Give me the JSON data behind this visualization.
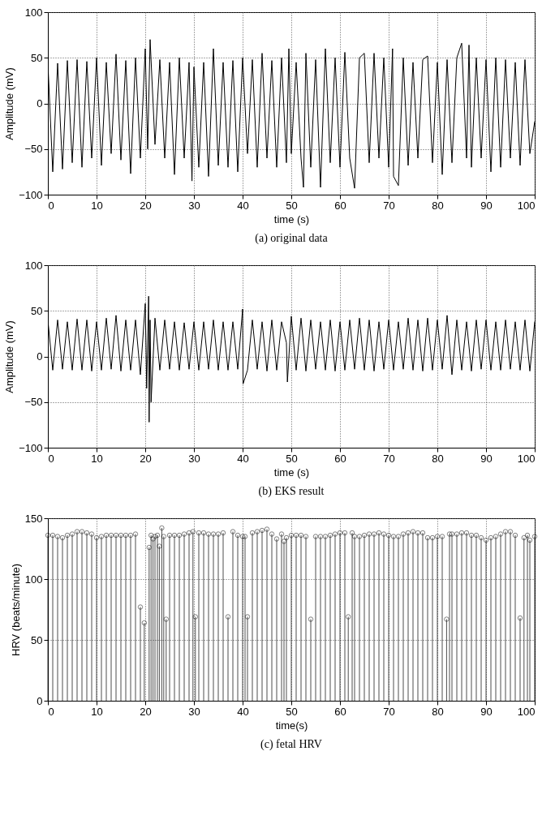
{
  "chart_data": [
    {
      "type": "line",
      "title": "(a) original data",
      "xlabel": "time (s)",
      "ylabel": "Amplitude (mV)",
      "xlim": [
        0,
        100
      ],
      "ylim": [
        -100,
        100
      ],
      "xticks": [
        0,
        10,
        20,
        30,
        40,
        50,
        60,
        70,
        80,
        90,
        100
      ],
      "yticks": [
        -100,
        -50,
        0,
        50,
        100
      ],
      "grid": true,
      "line_style": "solid",
      "series": [
        {
          "color": "#000000",
          "x": [
            0,
            1,
            2,
            3,
            4,
            5,
            6,
            7,
            8,
            9,
            10,
            11,
            12,
            13,
            14,
            15,
            16,
            17,
            18,
            19,
            20,
            20.5,
            21,
            22,
            23,
            24,
            25,
            26,
            27,
            28,
            29,
            29.6,
            30,
            31,
            32,
            33,
            34,
            35,
            36,
            37,
            38,
            39,
            40,
            41,
            42,
            43,
            44,
            45,
            46,
            47,
            48,
            49,
            49.5,
            50,
            51,
            52,
            52.5,
            53,
            54,
            55,
            56,
            57,
            58,
            59,
            60,
            61,
            62,
            63,
            64,
            65,
            66,
            67,
            68,
            69,
            70,
            70.8,
            71,
            72,
            73,
            74,
            75,
            76,
            77,
            78,
            79,
            80,
            81,
            82,
            83,
            84,
            85,
            86,
            86.5,
            87,
            88,
            89,
            90,
            91,
            92,
            93,
            94,
            95,
            96,
            97,
            98,
            99,
            100
          ],
          "values": [
            45,
            -75,
            44,
            -72,
            47,
            -65,
            48,
            -70,
            46,
            -60,
            50,
            -68,
            45,
            -55,
            54,
            -62,
            47,
            -77,
            50,
            -60,
            60,
            -50,
            70,
            -45,
            48,
            -60,
            45,
            -78,
            50,
            -60,
            45,
            -85,
            40,
            -70,
            45,
            -80,
            60,
            -68,
            45,
            -70,
            47,
            -75,
            50,
            -55,
            48,
            -70,
            55,
            -60,
            47,
            -70,
            50,
            -65,
            60,
            -55,
            45,
            -60,
            -92,
            55,
            -70,
            48,
            -92,
            60,
            -65,
            50,
            -70,
            56,
            -60,
            -93,
            50,
            55,
            -65,
            55,
            -60,
            50,
            -70,
            60,
            -80,
            -90,
            50,
            -68,
            45,
            -60,
            48,
            52,
            -65,
            45,
            -78,
            48,
            -65,
            50,
            66,
            -60,
            64,
            -70,
            50,
            -60,
            48,
            -75,
            50,
            -70,
            48,
            -60,
            45,
            -68,
            48,
            -55,
            -20
          ]
        }
      ]
    },
    {
      "type": "line",
      "title": "(b) EKS result",
      "xlabel": "time (s)",
      "ylabel": "Amplitude (mV)",
      "xlim": [
        0,
        100
      ],
      "ylim": [
        -100,
        100
      ],
      "xticks": [
        0,
        10,
        20,
        30,
        40,
        50,
        60,
        70,
        80,
        90,
        100
      ],
      "yticks": [
        -100,
        -50,
        0,
        50,
        100
      ],
      "grid": true,
      "line_style": "solid",
      "series": [
        {
          "color": "#000000",
          "x": [
            0,
            1,
            2,
            3,
            4,
            5,
            6,
            7,
            8,
            9,
            10,
            11,
            12,
            13,
            14,
            15,
            16,
            17,
            18,
            19,
            20,
            20.3,
            20.7,
            20.8,
            21,
            21.2,
            22,
            23,
            24,
            25,
            26,
            27,
            28,
            29,
            30,
            31,
            32,
            33,
            34,
            35,
            36,
            37,
            38,
            39,
            40,
            40.1,
            41,
            42,
            43,
            44,
            45,
            46,
            47,
            48,
            49,
            49.2,
            50,
            51,
            52,
            53,
            54,
            55,
            56,
            57,
            58,
            59,
            60,
            61,
            62,
            63,
            64,
            65,
            66,
            67,
            68,
            69,
            70,
            71,
            72,
            73,
            74,
            75,
            76,
            77,
            78,
            79,
            80,
            81,
            82,
            83,
            84,
            85,
            86,
            87,
            88,
            89,
            90,
            91,
            92,
            93,
            94,
            95,
            96,
            97,
            98,
            99,
            100
          ],
          "values": [
            40,
            -15,
            40,
            -14,
            38,
            -15,
            41,
            -15,
            40,
            -16,
            38,
            -15,
            42,
            -14,
            45,
            -16,
            40,
            -15,
            40,
            -20,
            58,
            -35,
            66,
            -72,
            40,
            -50,
            42,
            -15,
            40,
            -14,
            38,
            -15,
            37,
            -14,
            38,
            -15,
            38,
            -14,
            40,
            -15,
            38,
            -15,
            38,
            -14,
            52,
            -30,
            -15,
            40,
            -14,
            38,
            -16,
            40,
            -15,
            38,
            15,
            -28,
            44,
            -15,
            42,
            -16,
            40,
            -14,
            38,
            -15,
            40,
            -16,
            38,
            -15,
            40,
            -14,
            42,
            -15,
            40,
            -16,
            38,
            -14,
            40,
            -15,
            38,
            -14,
            42,
            -15,
            40,
            -16,
            42,
            -15,
            40,
            -14,
            45,
            -20,
            40,
            -15,
            38,
            -16,
            40,
            -14,
            40,
            -15,
            38,
            -15,
            40,
            -14,
            38,
            -15,
            40,
            -16,
            38
          ]
        }
      ]
    },
    {
      "type": "lollipop",
      "title": "(c) fetal HRV",
      "xlabel": "time(s)",
      "ylabel": "HRV (beats/minute)",
      "xlim": [
        0,
        100
      ],
      "ylim": [
        0,
        150
      ],
      "xticks": [
        0,
        10,
        20,
        30,
        40,
        50,
        60,
        70,
        80,
        90,
        100
      ],
      "yticks": [
        0,
        50,
        100,
        150
      ],
      "grid": true,
      "marker": "circle",
      "series": [
        {
          "color": "#000000",
          "x": [
            0,
            1,
            2,
            3,
            4,
            5,
            6,
            7,
            8,
            9,
            10,
            11,
            12,
            13,
            14,
            15,
            16,
            17,
            18,
            19,
            19.8,
            20.8,
            21.2,
            21.6,
            22,
            22.5,
            22.9,
            23.4,
            23.8,
            24.3,
            25,
            26,
            27,
            28,
            29,
            29.8,
            30.3,
            31,
            32,
            33,
            34,
            35,
            36,
            37,
            38,
            39,
            40,
            40.5,
            41,
            42,
            43,
            44,
            45,
            46,
            47,
            48,
            48.5,
            49,
            50,
            51,
            52,
            53,
            54,
            55,
            56,
            57,
            58,
            59,
            60,
            61,
            61.7,
            62.5,
            63,
            64,
            65,
            66,
            67,
            68,
            69,
            70,
            71,
            72,
            73,
            74,
            75,
            76,
            77,
            78,
            79,
            80,
            81,
            81.9,
            82.5,
            83,
            84,
            85,
            86,
            87,
            88,
            89,
            90,
            91,
            92,
            93,
            94,
            95,
            96,
            97,
            97.8,
            98.5,
            99,
            100
          ],
          "values": [
            136,
            136,
            135,
            134,
            136,
            137,
            139,
            139,
            138,
            137,
            134,
            135,
            136,
            136,
            136,
            136,
            136,
            136,
            137,
            77,
            64,
            126,
            136,
            133,
            135,
            136,
            127,
            142,
            135,
            67,
            136,
            136,
            136,
            137,
            138,
            139,
            69,
            138,
            138,
            137,
            137,
            137,
            138,
            69,
            139,
            136,
            135,
            135,
            69,
            138,
            139,
            140,
            141,
            137,
            133,
            137,
            131,
            134,
            136,
            136,
            136,
            135,
            67,
            135,
            135,
            135,
            136,
            137,
            138,
            138,
            69,
            138,
            135,
            135,
            136,
            137,
            137,
            138,
            137,
            136,
            135,
            135,
            137,
            138,
            139,
            138,
            138,
            134,
            134,
            135,
            135,
            67,
            137,
            137,
            137,
            138,
            138,
            136,
            136,
            134,
            132,
            134,
            135,
            137,
            139,
            139,
            136,
            68,
            134,
            136,
            132,
            135
          ]
        }
      ]
    }
  ]
}
